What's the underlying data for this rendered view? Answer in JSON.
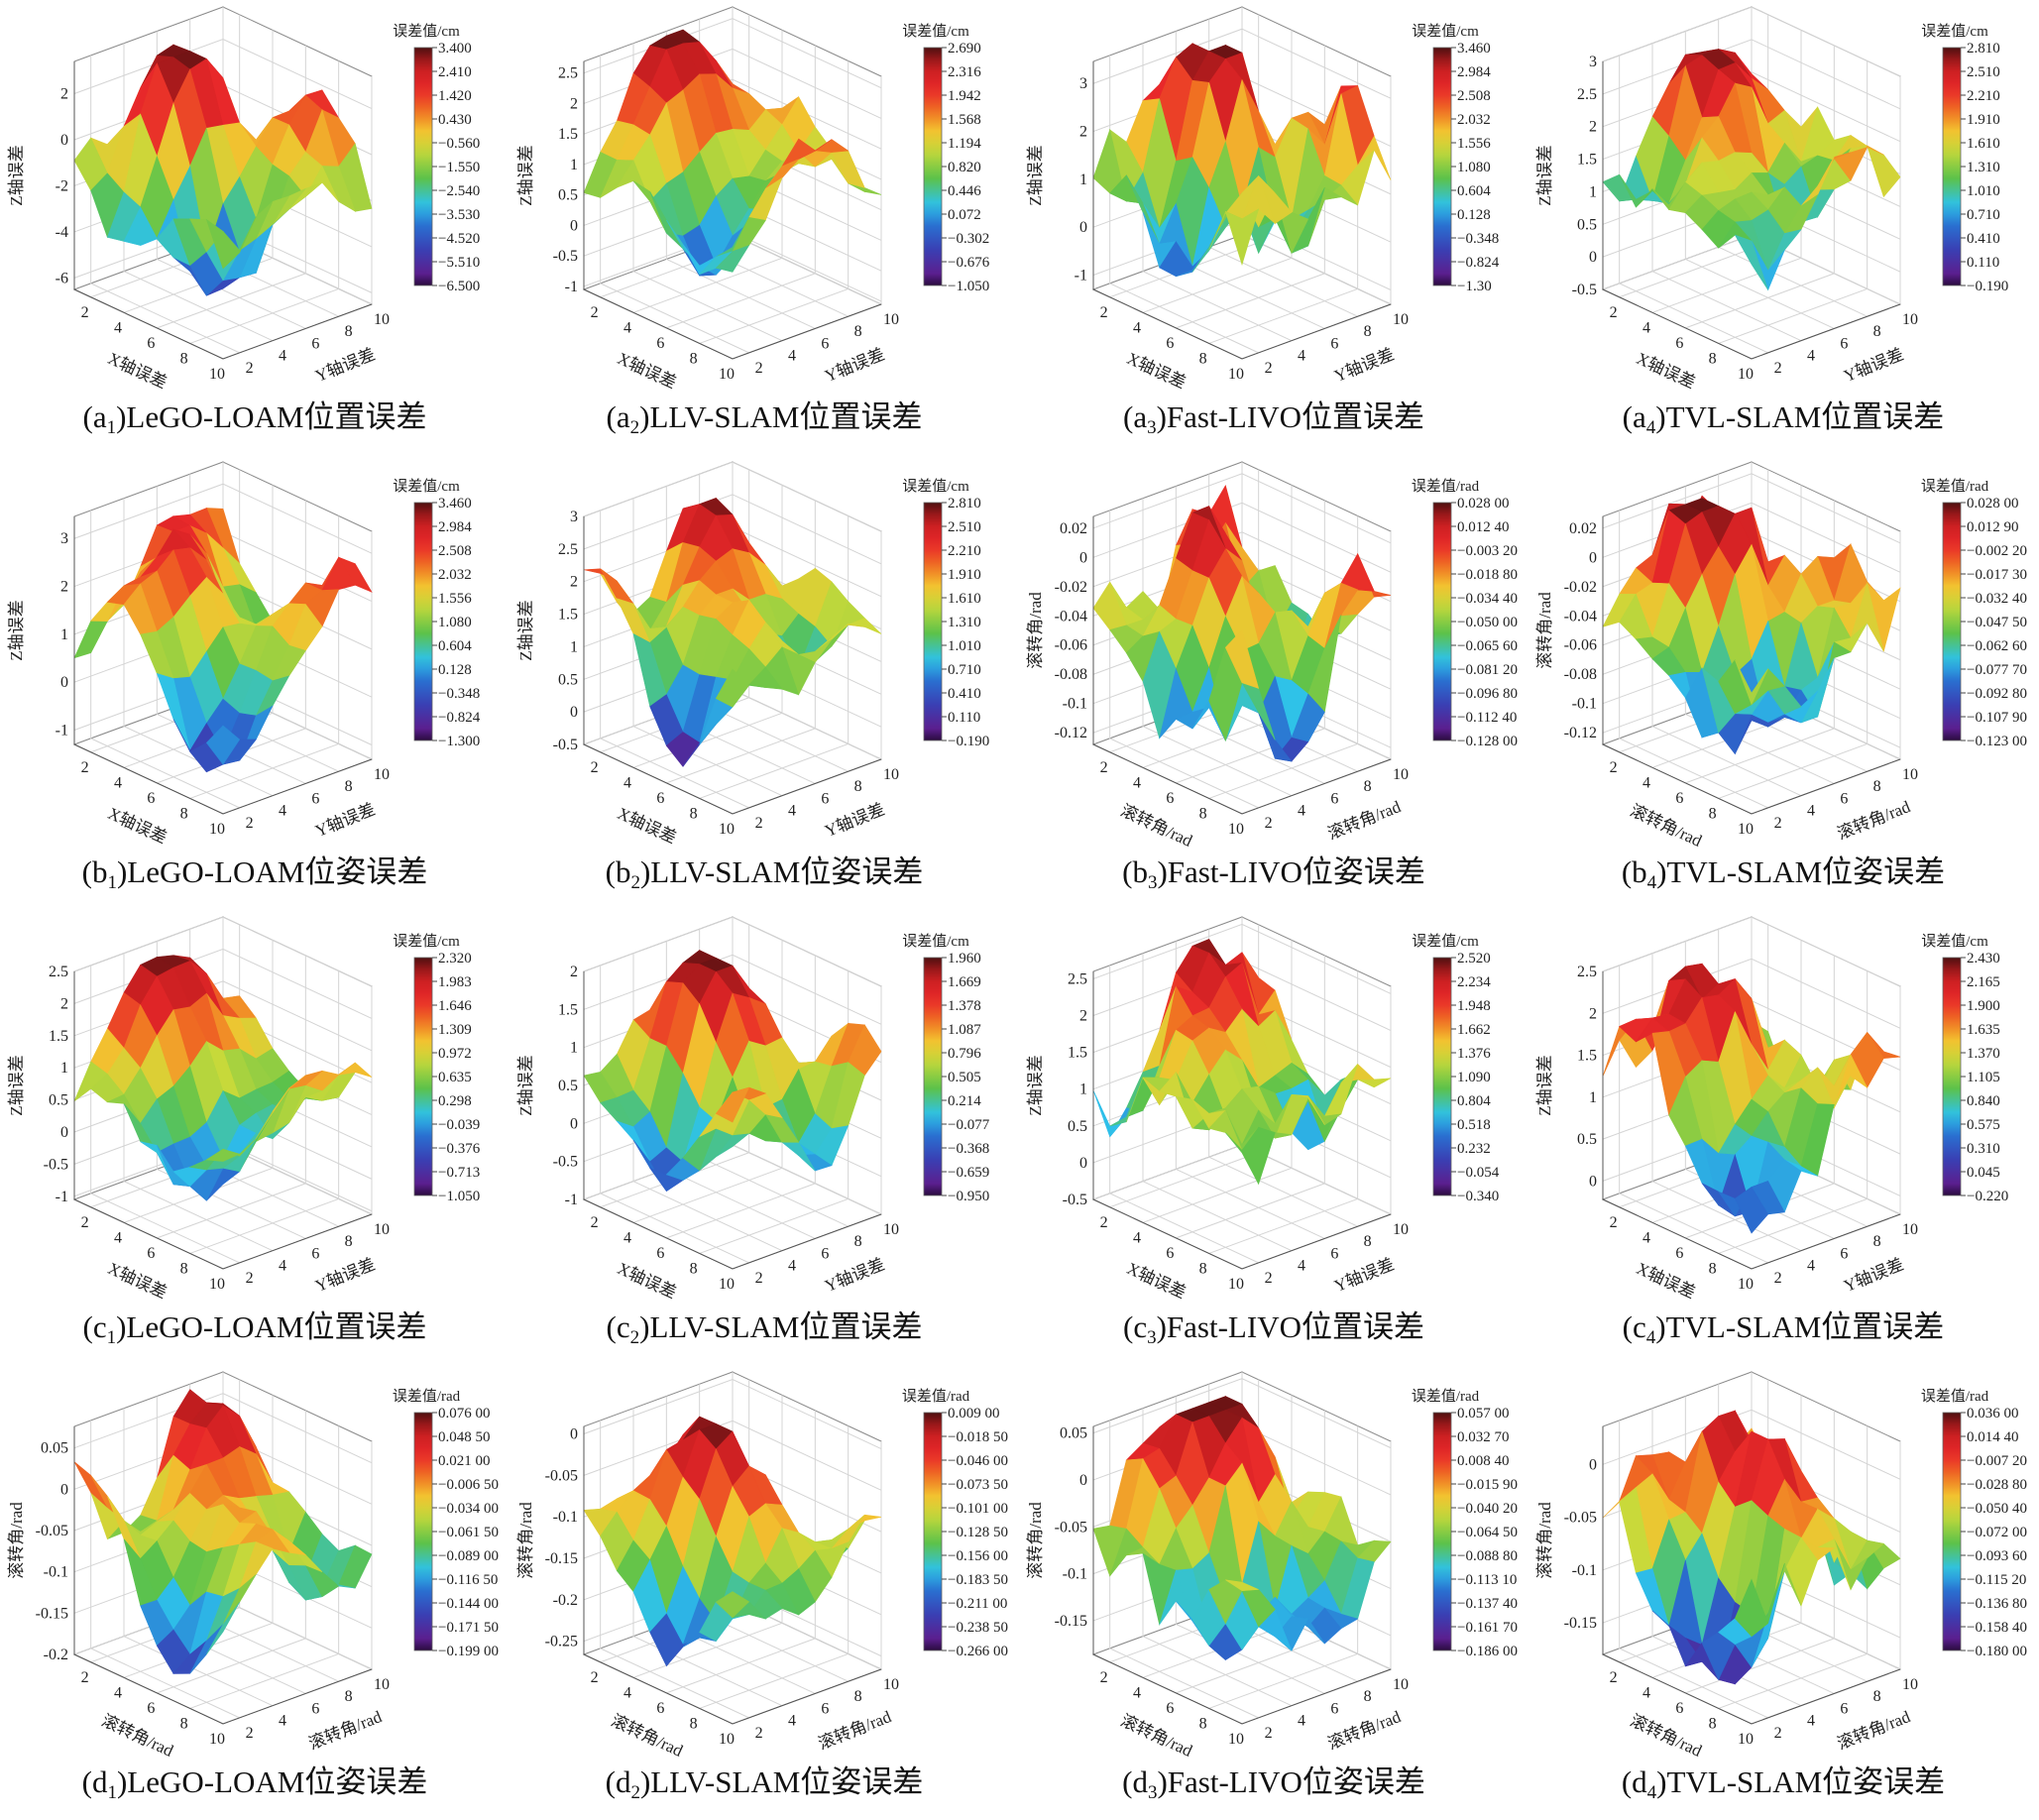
{
  "colors": {
    "wall_stroke": "#8a8a8a",
    "grid": "#d4d4d4"
  },
  "chart_data": [
    {
      "id": "a1",
      "type": "surface3d",
      "caption": {
        "open": "(a",
        "sub": "1",
        "rest": ")LeGO-LOAM位置误差"
      },
      "xlabel": "X轴误差",
      "ylabel": "Y轴误差",
      "zlabel": "Z轴误差",
      "xticks": [
        "2",
        "4",
        "6",
        "8",
        "10"
      ],
      "yticks": [
        "2",
        "4",
        "6",
        "8",
        "10"
      ],
      "zticks": [
        -6,
        -4,
        -2,
        0,
        2
      ],
      "zlim": [
        -6.5,
        3.4
      ],
      "colorbar": {
        "title": "误差值/cm",
        "ticks": [
          "3.400",
          "2.410",
          "1.420",
          "0.430",
          "−0.560",
          "−1.550",
          "−2.540",
          "−3.530",
          "−4.520",
          "−5.510",
          "−6.500"
        ],
        "range": [
          -6.5,
          3.4
        ]
      }
    },
    {
      "id": "a2",
      "type": "surface3d",
      "caption": {
        "open": "(a",
        "sub": "2",
        "rest": ")LLV-SLAM位置误差"
      },
      "xlabel": "X轴误差",
      "ylabel": "Y轴误差",
      "zlabel": "Z轴误差",
      "xticks": [
        "2",
        "4",
        "6",
        "8",
        "10"
      ],
      "yticks": [
        "2",
        "4",
        "6",
        "8",
        "10"
      ],
      "zticks": [
        -1.0,
        -0.5,
        0,
        0.5,
        1.0,
        1.5,
        2.0,
        2.5
      ],
      "zlim": [
        -1.05,
        2.69
      ],
      "colorbar": {
        "title": "误差值/cm",
        "ticks": [
          "2.690",
          "2.316",
          "1.942",
          "1.568",
          "1.194",
          "0.820",
          "0.446",
          "0.072",
          "−0.302",
          "−0.676",
          "−1.050"
        ],
        "range": [
          -1.05,
          2.69
        ]
      }
    },
    {
      "id": "a3",
      "type": "surface3d",
      "caption": {
        "open": "(a",
        "sub": "3",
        "rest": ")Fast-LIVO位置误差"
      },
      "xlabel": "X轴误差",
      "ylabel": "Y轴误差",
      "zlabel": "Z轴误差",
      "xticks": [
        "2",
        "4",
        "6",
        "8",
        "10"
      ],
      "yticks": [
        "2",
        "4",
        "6",
        "8",
        "10"
      ],
      "zticks": [
        -1,
        0,
        1,
        2,
        3
      ],
      "zlim": [
        -1.3,
        3.46
      ],
      "colorbar": {
        "title": "误差值/cm",
        "ticks": [
          "3.460",
          "2.984",
          "2.508",
          "2.032",
          "1.556",
          "1.080",
          "0.604",
          "0.128",
          "−0.348",
          "−0.824",
          "−1.30"
        ],
        "range": [
          -1.3,
          3.46
        ]
      }
    },
    {
      "id": "a4",
      "type": "surface3d",
      "caption": {
        "open": "(a",
        "sub": "4",
        "rest": ")TVL-SLAM位置误差"
      },
      "xlabel": "X轴误差",
      "ylabel": "Y轴误差",
      "zlabel": "Z轴误差",
      "xticks": [
        "2",
        "4",
        "6",
        "8",
        "10"
      ],
      "yticks": [
        "2",
        "4",
        "6",
        "8",
        "10"
      ],
      "zticks": [
        -0.5,
        0,
        0.5,
        1.0,
        1.5,
        2.0,
        2.5,
        3.0
      ],
      "zlim": [
        -0.5,
        3.0
      ],
      "colorbar": {
        "title": "误差值/cm",
        "ticks": [
          "2.810",
          "2.510",
          "2.210",
          "1.910",
          "1.610",
          "1.310",
          "1.010",
          "0.710",
          "0.410",
          "0.110",
          "−0.190"
        ],
        "range": [
          -0.19,
          2.81
        ]
      }
    },
    {
      "id": "b1",
      "type": "surface3d",
      "caption": {
        "open": "(b",
        "sub": "1",
        "rest": ")LeGO-LOAM位姿误差"
      },
      "xlabel": "X轴误差",
      "ylabel": "Y轴误差",
      "zlabel": "Z轴误差",
      "xticks": [
        "2",
        "4",
        "6",
        "8",
        "10"
      ],
      "yticks": [
        "2",
        "4",
        "6",
        "8",
        "10"
      ],
      "zticks": [
        -1,
        0,
        1,
        2,
        3
      ],
      "zlim": [
        -1.3,
        3.46
      ],
      "colorbar": {
        "title": "误差值/cm",
        "ticks": [
          "3.460",
          "2.984",
          "2.508",
          "2.032",
          "1.556",
          "1.080",
          "0.604",
          "0.128",
          "−0.348",
          "−0.824",
          "−1.300"
        ],
        "range": [
          -1.3,
          3.46
        ]
      }
    },
    {
      "id": "b2",
      "type": "surface3d",
      "caption": {
        "open": "(b",
        "sub": "2",
        "rest": ")LLV-SLAM位姿误差"
      },
      "xlabel": "X轴误差",
      "ylabel": "Y轴误差",
      "zlabel": "Z轴误差",
      "xticks": [
        "2",
        "4",
        "6",
        "8",
        "10"
      ],
      "yticks": [
        "2",
        "4",
        "6",
        "8",
        "10"
      ],
      "zticks": [
        -0.5,
        0,
        0.5,
        1.0,
        1.5,
        2.0,
        2.5,
        3.0
      ],
      "zlim": [
        -0.5,
        3.0
      ],
      "colorbar": {
        "title": "误差值/cm",
        "ticks": [
          "2.810",
          "2.510",
          "2.210",
          "1.910",
          "1.610",
          "1.310",
          "1.010",
          "0.710",
          "0.410",
          "0.110",
          "−0.190"
        ],
        "range": [
          -0.19,
          2.81
        ]
      }
    },
    {
      "id": "b3",
      "type": "surface3d",
      "caption": {
        "open": "(b",
        "sub": "3",
        "rest": ")Fast-LIVO位姿误差"
      },
      "xlabel": "滚转角/rad",
      "ylabel": "滚转角/rad",
      "zlabel": "滚转角/rad",
      "xticks": [
        "2",
        "4",
        "6",
        "8",
        "10"
      ],
      "yticks": [
        "2",
        "4",
        "6",
        "8",
        "10"
      ],
      "zticks": [
        -0.12,
        -0.1,
        -0.08,
        -0.06,
        -0.04,
        -0.02,
        0,
        0.02
      ],
      "zlim": [
        -0.128,
        0.028
      ],
      "colorbar": {
        "title": "误差值/rad",
        "ticks": [
          "0.028 00",
          "0.012 40",
          "−0.003 20",
          "−0.018 80",
          "−0.034 40",
          "−0.050 00",
          "−0.065 60",
          "−0.081 20",
          "−0.096 80",
          "−0.112 40",
          "−0.128 00"
        ],
        "range": [
          -0.128,
          0.028
        ]
      }
    },
    {
      "id": "b4",
      "type": "surface3d",
      "caption": {
        "open": "(b",
        "sub": "4",
        "rest": ")TVL-SLAM位姿误差"
      },
      "xlabel": "滚转角/rad",
      "ylabel": "滚转角/rad",
      "zlabel": "滚转角/rad",
      "xticks": [
        "2",
        "4",
        "6",
        "8",
        "10"
      ],
      "yticks": [
        "2",
        "4",
        "6",
        "8",
        "10"
      ],
      "zticks": [
        -0.12,
        -0.1,
        -0.08,
        -0.06,
        -0.04,
        -0.02,
        0,
        0.02
      ],
      "zlim": [
        -0.128,
        0.028
      ],
      "colorbar": {
        "title": "误差值/rad",
        "ticks": [
          "0.028 00",
          "0.012 90",
          "−0.002 20",
          "−0.017 30",
          "−0.032 40",
          "−0.047 50",
          "−0.062 60",
          "−0.077 70",
          "−0.092 80",
          "−0.107 90",
          "−0.123 00"
        ],
        "range": [
          -0.123,
          0.028
        ]
      }
    },
    {
      "id": "c1",
      "type": "surface3d",
      "caption": {
        "open": "(c",
        "sub": "1",
        "rest": ")LeGO-LOAM位置误差"
      },
      "xlabel": "X轴误差",
      "ylabel": "Y轴误差",
      "zlabel": "Z轴误差",
      "xticks": [
        "2",
        "4",
        "6",
        "8",
        "10"
      ],
      "yticks": [
        "2",
        "4",
        "6",
        "8",
        "10"
      ],
      "zticks": [
        -1.0,
        -0.5,
        0,
        0.5,
        1.0,
        1.5,
        2.0,
        2.5
      ],
      "zlim": [
        -1.05,
        2.5
      ],
      "colorbar": {
        "title": "误差值/cm",
        "ticks": [
          "2.320",
          "1.983",
          "1.646",
          "1.309",
          "0.972",
          "0.635",
          "0.298",
          "−0.039",
          "−0.376",
          "−0.713",
          "−1.050"
        ],
        "range": [
          -1.05,
          2.32
        ]
      }
    },
    {
      "id": "c2",
      "type": "surface3d",
      "caption": {
        "open": "(c",
        "sub": "2",
        "rest": ")LLV-SLAM位置误差"
      },
      "xlabel": "X轴误差",
      "ylabel": "Y轴误差",
      "zlabel": "Z轴误差",
      "xticks": [
        "2",
        "4",
        "6",
        "8",
        "10"
      ],
      "yticks": [
        "2",
        "4",
        "6",
        "8",
        "10"
      ],
      "zticks": [
        -1.0,
        -0.5,
        0,
        0.5,
        1.0,
        1.5,
        2.0
      ],
      "zlim": [
        -1.0,
        2.0
      ],
      "colorbar": {
        "title": "误差值/cm",
        "ticks": [
          "1.960",
          "1.669",
          "1.378",
          "1.087",
          "0.796",
          "0.505",
          "0.214",
          "−0.077",
          "−0.368",
          "−0.659",
          "−0.950"
        ],
        "range": [
          -0.95,
          1.96
        ]
      }
    },
    {
      "id": "c3",
      "type": "surface3d",
      "caption": {
        "open": "(c",
        "sub": "3",
        "rest": ")Fast-LIVO位置误差"
      },
      "xlabel": "X轴误差",
      "ylabel": "Y轴误差",
      "zlabel": "Z轴误差",
      "xticks": [
        "2",
        "4",
        "6",
        "8",
        "10"
      ],
      "yticks": [
        "2",
        "4",
        "6",
        "8",
        "10"
      ],
      "zticks": [
        -0.5,
        0,
        0.5,
        1.0,
        1.5,
        2.0,
        2.5
      ],
      "zlim": [
        -0.5,
        2.6
      ],
      "colorbar": {
        "title": "误差值/cm",
        "ticks": [
          "2.520",
          "2.234",
          "1.948",
          "1.662",
          "1.376",
          "1.090",
          "0.804",
          "0.518",
          "0.232",
          "−0.054",
          "−0.340"
        ],
        "range": [
          -0.34,
          2.52
        ]
      }
    },
    {
      "id": "c4",
      "type": "surface3d",
      "caption": {
        "open": "(c",
        "sub": "4",
        "rest": ")TVL-SLAM位置误差"
      },
      "xlabel": "X轴误差",
      "ylabel": "Y轴误差",
      "zlabel": "Z轴误差",
      "xticks": [
        "2",
        "4",
        "6",
        "8",
        "10"
      ],
      "yticks": [
        "2",
        "4",
        "6",
        "8",
        "10"
      ],
      "zticks": [
        0,
        0.5,
        1.0,
        1.5,
        2.0,
        2.5
      ],
      "zlim": [
        -0.22,
        2.5
      ],
      "colorbar": {
        "title": "误差值/cm",
        "ticks": [
          "2.430",
          "2.165",
          "1.900",
          "1.635",
          "1.370",
          "1.105",
          "0.840",
          "0.575",
          "0.310",
          "0.045",
          "−0.220"
        ],
        "range": [
          -0.22,
          2.43
        ]
      }
    },
    {
      "id": "d1",
      "type": "surface3d",
      "caption": {
        "open": "(d",
        "sub": "1",
        "rest": ")LeGO-LOAM位姿误差"
      },
      "xlabel": "滚转角/rad",
      "ylabel": "滚转角/rad",
      "zlabel": "滚转角/rad",
      "xticks": [
        "2",
        "4",
        "6",
        "8",
        "10"
      ],
      "yticks": [
        "2",
        "4",
        "6",
        "8",
        "10"
      ],
      "zticks": [
        -0.2,
        -0.15,
        -0.1,
        -0.05,
        0,
        0.05
      ],
      "zlim": [
        -0.2,
        0.076
      ],
      "colorbar": {
        "title": "误差值/rad",
        "ticks": [
          "0.076 00",
          "0.048 50",
          "0.021 00",
          "−0.006 50",
          "−0.034 00",
          "−0.061 50",
          "−0.089 00",
          "−0.116 50",
          "−0.144 00",
          "−0.171 50",
          "−0.199 00"
        ],
        "range": [
          -0.199,
          0.076
        ]
      }
    },
    {
      "id": "d2",
      "type": "surface3d",
      "caption": {
        "open": "(d",
        "sub": "2",
        "rest": ")LLV-SLAM位姿误差"
      },
      "xlabel": "滚转角/rad",
      "ylabel": "滚转角/rad",
      "zlabel": "滚转角/rad",
      "xticks": [
        "2",
        "4",
        "6",
        "8",
        "10"
      ],
      "yticks": [
        "2",
        "4",
        "6",
        "8",
        "10"
      ],
      "zticks": [
        -0.25,
        -0.2,
        -0.15,
        -0.1,
        -0.05,
        0
      ],
      "zlim": [
        -0.266,
        0.009
      ],
      "colorbar": {
        "title": "误差值/rad",
        "ticks": [
          "0.009 00",
          "−0.018 50",
          "−0.046 00",
          "−0.073 50",
          "−0.101 00",
          "−0.128 50",
          "−0.156 00",
          "−0.183 50",
          "−0.211 00",
          "−0.238 50",
          "−0.266 00"
        ],
        "range": [
          -0.266,
          0.009
        ]
      }
    },
    {
      "id": "d3",
      "type": "surface3d",
      "caption": {
        "open": "(d",
        "sub": "3",
        "rest": ")Fast-LIVO位姿误差"
      },
      "xlabel": "滚转角/rad",
      "ylabel": "滚转角/rad",
      "zlabel": "滚转角/rad",
      "xticks": [
        "2",
        "4",
        "6",
        "8",
        "10"
      ],
      "yticks": [
        "2",
        "4",
        "6",
        "8",
        "10"
      ],
      "zticks": [
        -0.15,
        -0.1,
        -0.05,
        0,
        0.05
      ],
      "zlim": [
        -0.186,
        0.057
      ],
      "colorbar": {
        "title": "误差值/rad",
        "ticks": [
          "0.057 00",
          "0.032 70",
          "0.008 40",
          "−0.015 90",
          "−0.040 20",
          "−0.064 50",
          "−0.088 80",
          "−0.113 10",
          "−0.137 40",
          "−0.161 70",
          "−0.186 00"
        ],
        "range": [
          -0.186,
          0.057
        ]
      }
    },
    {
      "id": "d4",
      "type": "surface3d",
      "caption": {
        "open": "(d",
        "sub": "4",
        "rest": ")TVL-SLAM位姿误差"
      },
      "xlabel": "滚转角/rad",
      "ylabel": "滚转角/rad",
      "zlabel": "滚转角/rad",
      "xticks": [
        "2",
        "4",
        "6",
        "8",
        "10"
      ],
      "yticks": [
        "2",
        "4",
        "6",
        "8",
        "10"
      ],
      "zticks": [
        -0.15,
        -0.1,
        -0.05,
        0
      ],
      "zlim": [
        -0.18,
        0.036
      ],
      "colorbar": {
        "title": "误差值/rad",
        "ticks": [
          "0.036 00",
          "0.014 40",
          "−0.007 20",
          "−0.028 80",
          "−0.050 40",
          "−0.072 00",
          "−0.093 60",
          "−0.115 20",
          "−0.136 80",
          "−0.158 40",
          "−0.180 00"
        ],
        "range": [
          -0.18,
          0.036
        ]
      }
    }
  ]
}
